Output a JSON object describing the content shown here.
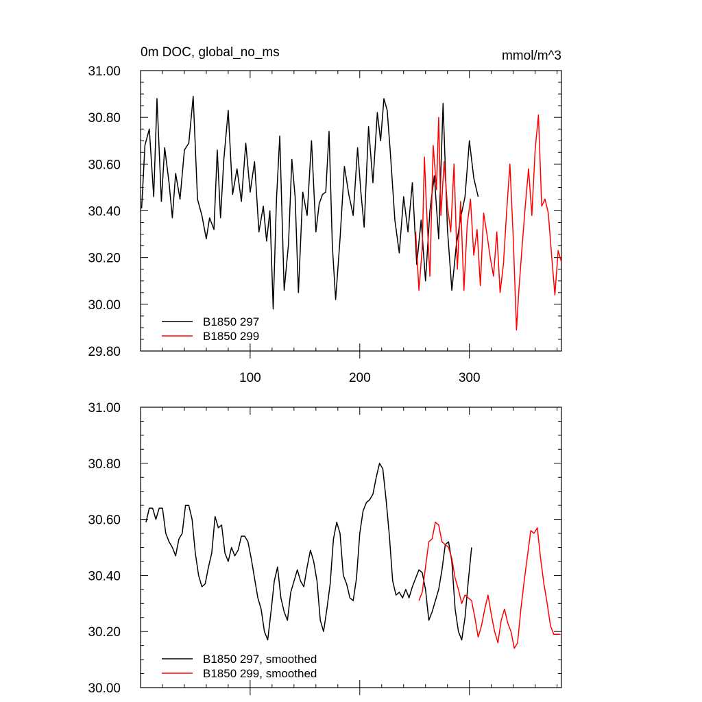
{
  "colors": {
    "run297": "#000000",
    "run299": "#ff0000"
  },
  "chart_data": [
    {
      "type": "line",
      "title": "0m DOC, global_no_ms",
      "units": "mmol/m^3",
      "xlim": [
        0,
        384
      ],
      "ylim": [
        29.8,
        31.0
      ],
      "x_ticks": [
        100,
        200,
        300
      ],
      "y_ticks": [
        "29.80",
        "30.00",
        "30.20",
        "30.40",
        "30.60",
        "30.80",
        "31.00"
      ],
      "legend": [
        "B1850 297",
        "B1850 299"
      ],
      "series": [
        {
          "name": "B1850 297",
          "x": [
            1,
            4,
            8,
            12,
            15,
            19,
            22,
            26,
            29,
            32,
            36,
            40,
            44,
            48,
            52,
            56,
            60,
            63,
            67,
            70,
            73,
            76,
            80,
            84,
            88,
            92,
            96,
            100,
            104,
            108,
            112,
            115,
            118,
            121,
            124,
            127,
            131,
            135,
            138,
            141,
            144,
            148,
            152,
            156,
            160,
            163,
            166,
            169,
            172,
            175,
            178,
            182,
            186,
            190,
            194,
            198,
            201,
            204,
            208,
            212,
            216,
            219,
            222,
            225,
            228,
            232,
            236,
            240,
            244,
            248,
            252,
            256,
            260,
            264,
            268,
            272,
            276,
            280,
            284,
            288,
            292,
            296,
            300,
            304,
            308
          ],
          "values": [
            30.41,
            30.68,
            30.75,
            30.46,
            30.88,
            30.44,
            30.67,
            30.52,
            30.37,
            30.56,
            30.45,
            30.66,
            30.69,
            30.89,
            30.45,
            30.38,
            30.28,
            30.37,
            30.32,
            30.66,
            30.37,
            30.62,
            30.83,
            30.47,
            30.58,
            30.44,
            30.69,
            30.48,
            30.61,
            30.31,
            30.42,
            30.27,
            30.4,
            29.98,
            30.45,
            30.72,
            30.06,
            30.26,
            30.62,
            30.46,
            30.05,
            30.48,
            30.38,
            30.7,
            30.31,
            30.43,
            30.47,
            30.48,
            30.74,
            30.25,
            30.02,
            30.28,
            30.59,
            30.47,
            30.38,
            30.67,
            30.48,
            30.33,
            30.76,
            30.52,
            30.82,
            30.7,
            30.88,
            30.83,
            30.64,
            30.36,
            30.22,
            30.46,
            30.31,
            30.52,
            30.17,
            30.36,
            30.1,
            30.4,
            30.55,
            30.28,
            30.86,
            30.32,
            30.06,
            30.25,
            30.37,
            30.46,
            30.7,
            30.54,
            30.46
          ]
        },
        {
          "name": "B1850 299",
          "x": [
            251,
            254,
            257,
            259,
            261,
            264,
            267,
            270,
            272,
            274,
            277,
            280,
            283,
            286,
            289,
            292,
            295,
            298,
            301,
            304,
            307,
            310,
            313,
            316,
            319,
            322,
            325,
            328,
            331,
            334,
            337,
            340,
            343,
            345,
            348,
            351,
            354,
            357,
            360,
            363,
            366,
            369,
            372,
            375,
            378,
            381,
            384
          ],
          "values": [
            30.31,
            30.06,
            30.24,
            30.63,
            30.4,
            30.12,
            30.68,
            30.49,
            30.8,
            30.38,
            30.61,
            30.42,
            30.31,
            30.6,
            30.15,
            30.44,
            30.06,
            30.34,
            30.45,
            30.21,
            30.32,
            30.08,
            30.39,
            30.3,
            30.2,
            30.12,
            30.31,
            30.05,
            30.17,
            30.4,
            30.6,
            30.29,
            29.89,
            30.05,
            30.24,
            30.42,
            30.58,
            30.38,
            30.66,
            30.81,
            30.42,
            30.45,
            30.39,
            30.21,
            30.04,
            30.23,
            30.18
          ]
        }
      ]
    },
    {
      "type": "line",
      "xlim": [
        0,
        384
      ],
      "ylim": [
        30.0,
        31.0
      ],
      "y_ticks": [
        "30.00",
        "30.20",
        "30.40",
        "30.60",
        "30.80",
        "31.00"
      ],
      "legend": [
        "B1850 297, smoothed",
        "B1850 299, smoothed"
      ],
      "series": [
        {
          "name": "B1850 297, smoothed",
          "x": [
            5,
            8,
            11,
            14,
            17,
            20,
            23,
            26,
            29,
            32,
            35,
            38,
            41,
            44,
            47,
            50,
            53,
            56,
            59,
            62,
            65,
            68,
            71,
            74,
            77,
            80,
            83,
            86,
            89,
            92,
            95,
            98,
            101,
            104,
            107,
            110,
            113,
            116,
            119,
            122,
            125,
            128,
            131,
            134,
            137,
            140,
            143,
            146,
            149,
            152,
            155,
            158,
            161,
            164,
            167,
            170,
            173,
            176,
            179,
            182,
            185,
            188,
            191,
            194,
            197,
            200,
            203,
            206,
            209,
            212,
            215,
            218,
            221,
            224,
            227,
            230,
            233,
            236,
            239,
            242,
            245,
            248,
            251,
            254,
            257,
            260,
            263,
            266,
            269,
            272,
            275,
            278,
            281,
            284,
            287,
            290,
            293,
            296,
            299,
            302
          ],
          "values": [
            30.59,
            30.64,
            30.64,
            30.6,
            30.64,
            30.64,
            30.55,
            30.52,
            30.5,
            30.47,
            30.53,
            30.55,
            30.65,
            30.65,
            30.6,
            30.48,
            30.4,
            30.36,
            30.37,
            30.43,
            30.48,
            30.61,
            30.57,
            30.58,
            30.48,
            30.45,
            30.5,
            30.47,
            30.49,
            30.54,
            30.54,
            30.52,
            30.46,
            30.39,
            30.32,
            30.28,
            30.2,
            30.17,
            30.27,
            30.38,
            30.43,
            30.32,
            30.27,
            30.24,
            30.34,
            30.38,
            30.42,
            30.38,
            30.36,
            30.43,
            30.49,
            30.45,
            30.38,
            30.24,
            30.2,
            30.28,
            30.37,
            30.53,
            30.59,
            30.55,
            30.4,
            30.37,
            30.32,
            30.31,
            30.39,
            30.55,
            30.63,
            30.66,
            30.67,
            30.69,
            30.75,
            30.8,
            30.78,
            30.67,
            30.54,
            30.38,
            30.33,
            30.34,
            30.32,
            30.35,
            30.32,
            30.36,
            30.39,
            30.42,
            30.41,
            30.35,
            30.24,
            30.27,
            30.31,
            30.35,
            30.42,
            30.51,
            30.52,
            30.45,
            30.28,
            30.2,
            30.17,
            30.25,
            30.38,
            30.5
          ]
        },
        {
          "name": "B1850 299, smoothed",
          "x": [
            254,
            257,
            260,
            263,
            266,
            269,
            272,
            275,
            278,
            281,
            284,
            287,
            290,
            293,
            296,
            299,
            302,
            305,
            308,
            311,
            314,
            317,
            320,
            323,
            326,
            329,
            332,
            335,
            338,
            341,
            344,
            347,
            350,
            353,
            356,
            359,
            362,
            365,
            368,
            371,
            374,
            377,
            380,
            383
          ],
          "values": [
            30.31,
            30.34,
            30.43,
            30.52,
            30.53,
            30.59,
            30.58,
            30.52,
            30.51,
            30.5,
            30.46,
            30.39,
            30.35,
            30.3,
            30.33,
            30.32,
            30.31,
            30.25,
            30.18,
            30.22,
            30.28,
            30.33,
            30.26,
            30.2,
            30.16,
            30.24,
            30.28,
            30.23,
            30.2,
            30.14,
            30.16,
            30.28,
            30.38,
            30.47,
            30.56,
            30.55,
            30.57,
            30.46,
            30.37,
            30.3,
            30.22,
            30.19,
            30.19,
            30.19
          ]
        }
      ]
    }
  ]
}
